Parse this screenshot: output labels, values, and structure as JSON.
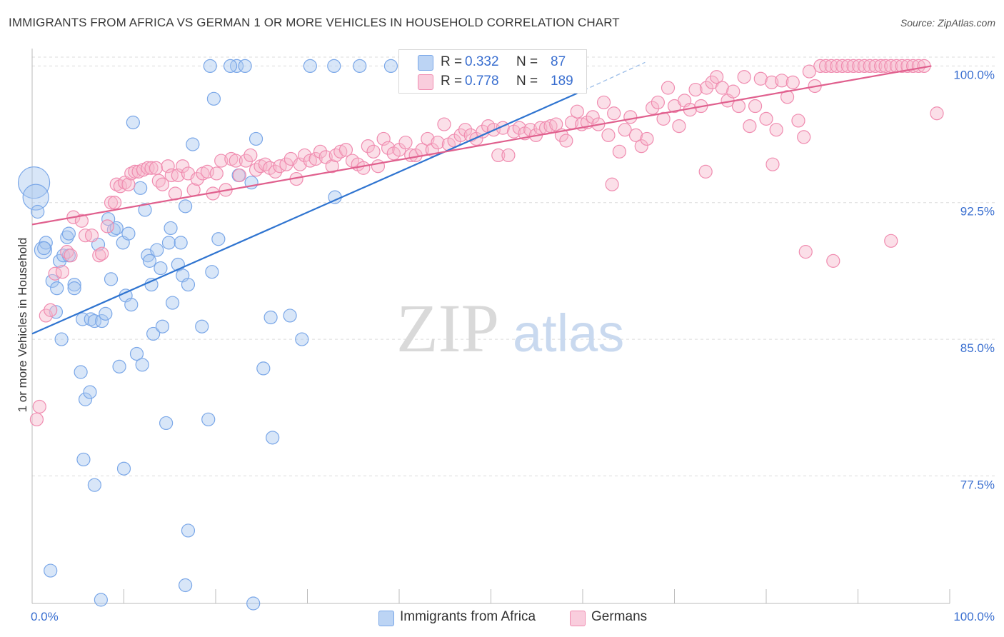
{
  "header": {
    "title": "IMMIGRANTS FROM AFRICA VS GERMAN 1 OR MORE VEHICLES IN HOUSEHOLD CORRELATION CHART",
    "source": "Source: ZipAtlas.com"
  },
  "watermark": {
    "zip": "ZIP",
    "atlas": "atlas"
  },
  "legend": {
    "rows": [
      {
        "r_label": "R =",
        "r_value": "0.332",
        "n_label": "N =",
        "n_value": "87",
        "color": "#a9c7f0"
      },
      {
        "r_label": "R =",
        "r_value": "0.778",
        "n_label": "N =",
        "n_value": "189",
        "color": "#f6b8cd"
      }
    ]
  },
  "bottom_legend": [
    {
      "label": "Immigrants from Africa",
      "color": "#a9c7f0"
    },
    {
      "label": "Germans",
      "color": "#f6b8cd"
    }
  ],
  "chart_data": {
    "type": "scatter",
    "title": "IMMIGRANTS FROM AFRICA VS GERMAN 1 OR MORE VEHICLES IN HOUSEHOLD CORRELATION CHART",
    "xlabel": "",
    "ylabel": "1 or more Vehicles in Household",
    "xlim": [
      0,
      100
    ],
    "ylim": [
      70.5,
      100.8
    ],
    "x_tick_labels": [
      "0.0%",
      "100.0%"
    ],
    "y_ticks": [
      77.5,
      85.0,
      92.5,
      100.0
    ],
    "y_tick_labels": [
      "77.5%",
      "85.0%",
      "92.5%",
      "100.0%"
    ],
    "grid": true,
    "series": [
      {
        "name": "Immigrants from Africa",
        "color": "#7aa7e8",
        "line_color": "#2f74d0",
        "trend": {
          "x0": 0,
          "y0": 85.3,
          "x1": 59.4,
          "y1": 98.5,
          "dash_to_x": 66.8,
          "dash_to_y": 100.2
        },
        "points": [
          [
            0.2,
            93.6
          ],
          [
            0.4,
            92.8
          ],
          [
            0.6,
            92.0
          ],
          [
            1.2,
            89.9
          ],
          [
            1.5,
            90.3
          ],
          [
            1.3,
            90.0
          ],
          [
            2.2,
            88.2
          ],
          [
            2.6,
            86.5
          ],
          [
            2.7,
            87.8
          ],
          [
            3.0,
            89.3
          ],
          [
            3.2,
            85.0
          ],
          [
            3.4,
            89.6
          ],
          [
            3.8,
            90.6
          ],
          [
            4.0,
            90.8
          ],
          [
            4.0,
            89.6
          ],
          [
            4.6,
            88.0
          ],
          [
            4.6,
            87.8
          ],
          [
            5.3,
            83.2
          ],
          [
            5.5,
            86.1
          ],
          [
            5.8,
            81.7
          ],
          [
            6.4,
            86.1
          ],
          [
            6.8,
            86.0
          ],
          [
            7.2,
            90.2
          ],
          [
            7.6,
            86.0
          ],
          [
            8.0,
            86.4
          ],
          [
            8.3,
            91.6
          ],
          [
            8.6,
            88.3
          ],
          [
            8.9,
            91.0
          ],
          [
            9.2,
            91.1
          ],
          [
            9.5,
            83.5
          ],
          [
            9.9,
            90.3
          ],
          [
            10.2,
            87.4
          ],
          [
            10.5,
            90.8
          ],
          [
            10.8,
            86.9
          ],
          [
            11.0,
            96.9
          ],
          [
            11.4,
            84.2
          ],
          [
            11.8,
            93.3
          ],
          [
            12.0,
            83.6
          ],
          [
            12.3,
            92.1
          ],
          [
            12.6,
            89.6
          ],
          [
            12.8,
            89.3
          ],
          [
            13.0,
            88.0
          ],
          [
            13.2,
            85.3
          ],
          [
            13.6,
            89.9
          ],
          [
            14.0,
            88.9
          ],
          [
            14.2,
            85.7
          ],
          [
            14.6,
            80.4
          ],
          [
            14.9,
            90.3
          ],
          [
            15.1,
            91.1
          ],
          [
            15.3,
            87.0
          ],
          [
            15.9,
            89.1
          ],
          [
            16.2,
            90.3
          ],
          [
            16.4,
            88.5
          ],
          [
            16.7,
            92.3
          ],
          [
            17.0,
            88.0
          ],
          [
            17.5,
            95.7
          ],
          [
            18.5,
            85.7
          ],
          [
            19.2,
            80.6
          ],
          [
            19.6,
            88.7
          ],
          [
            20.3,
            90.5
          ],
          [
            19.8,
            98.2
          ],
          [
            6.3,
            82.1
          ],
          [
            5.6,
            78.4
          ],
          [
            6.8,
            77.0
          ],
          [
            10.0,
            77.9
          ],
          [
            17.0,
            74.5
          ],
          [
            16.7,
            71.5
          ],
          [
            2.0,
            72.3
          ],
          [
            7.5,
            70.7
          ],
          [
            24.1,
            70.5
          ],
          [
            22.5,
            94.0
          ],
          [
            24.4,
            96.0
          ],
          [
            23.9,
            93.6
          ],
          [
            26.0,
            86.2
          ],
          [
            28.1,
            86.3
          ],
          [
            25.2,
            83.4
          ],
          [
            26.2,
            79.6
          ],
          [
            29.4,
            85.0
          ],
          [
            33.0,
            92.8
          ],
          [
            19.4,
            100.0
          ],
          [
            22.3,
            100.0
          ],
          [
            23.2,
            100.0
          ],
          [
            30.3,
            100.0
          ],
          [
            32.9,
            100.0
          ],
          [
            35.7,
            100.0
          ],
          [
            39.1,
            100.0
          ],
          [
            21.6,
            100.0
          ]
        ]
      },
      {
        "name": "Germans",
        "color": "#f08cb0",
        "line_color": "#e0608e",
        "trend": {
          "x0": 0,
          "y0": 91.3,
          "x1": 98.0,
          "y1": 100.0
        },
        "points": [
          [
            0.5,
            80.6
          ],
          [
            0.8,
            81.3
          ],
          [
            1.5,
            86.3
          ],
          [
            2.0,
            86.6
          ],
          [
            2.5,
            88.6
          ],
          [
            3.3,
            88.7
          ],
          [
            3.8,
            89.8
          ],
          [
            4.2,
            89.6
          ],
          [
            4.5,
            91.7
          ],
          [
            5.4,
            91.5
          ],
          [
            5.8,
            90.7
          ],
          [
            6.5,
            90.7
          ],
          [
            7.3,
            89.6
          ],
          [
            7.6,
            89.7
          ],
          [
            8.2,
            91.2
          ],
          [
            8.6,
            92.5
          ],
          [
            9.0,
            92.5
          ],
          [
            9.2,
            93.5
          ],
          [
            9.6,
            93.4
          ],
          [
            10.1,
            93.6
          ],
          [
            10.5,
            93.5
          ],
          [
            10.8,
            94.1
          ],
          [
            11.2,
            94.2
          ],
          [
            11.6,
            94.2
          ],
          [
            12.1,
            94.3
          ],
          [
            12.6,
            94.4
          ],
          [
            13.0,
            94.4
          ],
          [
            13.5,
            94.4
          ],
          [
            13.8,
            93.7
          ],
          [
            14.2,
            93.5
          ],
          [
            14.8,
            94.5
          ],
          [
            15.2,
            94.0
          ],
          [
            15.6,
            93.0
          ],
          [
            15.9,
            94.0
          ],
          [
            16.4,
            94.5
          ],
          [
            17.0,
            94.1
          ],
          [
            17.6,
            93.2
          ],
          [
            18.0,
            93.8
          ],
          [
            18.6,
            94.1
          ],
          [
            19.1,
            94.2
          ],
          [
            19.7,
            93.0
          ],
          [
            20.1,
            94.1
          ],
          [
            20.6,
            94.8
          ],
          [
            21.1,
            93.2
          ],
          [
            21.7,
            94.9
          ],
          [
            22.2,
            94.8
          ],
          [
            22.6,
            94.0
          ],
          [
            23.3,
            94.8
          ],
          [
            23.8,
            95.1
          ],
          [
            24.4,
            94.3
          ],
          [
            24.9,
            94.5
          ],
          [
            25.4,
            94.6
          ],
          [
            25.9,
            94.4
          ],
          [
            26.5,
            94.2
          ],
          [
            27.0,
            94.5
          ],
          [
            27.7,
            94.6
          ],
          [
            28.2,
            94.9
          ],
          [
            28.8,
            93.8
          ],
          [
            29.2,
            94.6
          ],
          [
            29.7,
            95.1
          ],
          [
            30.3,
            94.8
          ],
          [
            30.9,
            94.9
          ],
          [
            31.4,
            95.3
          ],
          [
            32.0,
            95.0
          ],
          [
            32.7,
            94.5
          ],
          [
            33.1,
            95.1
          ],
          [
            33.6,
            95.3
          ],
          [
            34.2,
            95.4
          ],
          [
            34.9,
            94.8
          ],
          [
            35.5,
            94.6
          ],
          [
            36.1,
            94.4
          ],
          [
            36.6,
            95.6
          ],
          [
            37.2,
            95.3
          ],
          [
            37.7,
            94.5
          ],
          [
            38.3,
            96.0
          ],
          [
            38.8,
            95.5
          ],
          [
            39.4,
            95.2
          ],
          [
            40.0,
            95.4
          ],
          [
            40.7,
            95.8
          ],
          [
            41.3,
            95.1
          ],
          [
            41.8,
            95.1
          ],
          [
            42.5,
            95.4
          ],
          [
            43.1,
            96.0
          ],
          [
            43.6,
            95.4
          ],
          [
            44.2,
            95.8
          ],
          [
            44.9,
            96.8
          ],
          [
            45.4,
            95.7
          ],
          [
            46.0,
            95.9
          ],
          [
            46.7,
            96.2
          ],
          [
            47.2,
            96.5
          ],
          [
            47.8,
            96.2
          ],
          [
            48.4,
            96.0
          ],
          [
            49.1,
            96.4
          ],
          [
            49.7,
            96.7
          ],
          [
            50.3,
            96.5
          ],
          [
            50.8,
            95.1
          ],
          [
            51.3,
            96.6
          ],
          [
            51.9,
            95.1
          ],
          [
            52.5,
            96.4
          ],
          [
            53.1,
            96.6
          ],
          [
            53.7,
            96.3
          ],
          [
            54.3,
            96.5
          ],
          [
            54.9,
            96.2
          ],
          [
            55.4,
            96.6
          ],
          [
            56.0,
            96.6
          ],
          [
            56.5,
            96.7
          ],
          [
            57.1,
            96.8
          ],
          [
            57.7,
            96.2
          ],
          [
            58.2,
            95.9
          ],
          [
            58.8,
            96.9
          ],
          [
            59.4,
            97.5
          ],
          [
            59.9,
            96.8
          ],
          [
            60.5,
            96.9
          ],
          [
            61.1,
            97.2
          ],
          [
            61.7,
            96.8
          ],
          [
            62.3,
            98.0
          ],
          [
            62.8,
            96.2
          ],
          [
            63.4,
            97.4
          ],
          [
            64.0,
            95.3
          ],
          [
            64.6,
            96.5
          ],
          [
            65.2,
            97.2
          ],
          [
            65.8,
            96.2
          ],
          [
            66.4,
            95.6
          ],
          [
            67.0,
            96.0
          ],
          [
            67.6,
            97.7
          ],
          [
            68.2,
            98.0
          ],
          [
            68.8,
            97.1
          ],
          [
            69.3,
            98.8
          ],
          [
            70.0,
            97.8
          ],
          [
            70.5,
            96.7
          ],
          [
            71.1,
            98.1
          ],
          [
            71.7,
            97.6
          ],
          [
            72.3,
            98.7
          ],
          [
            72.9,
            97.8
          ],
          [
            73.5,
            98.8
          ],
          [
            74.1,
            99.1
          ],
          [
            74.6,
            99.4
          ],
          [
            75.2,
            98.8
          ],
          [
            75.8,
            98.1
          ],
          [
            76.4,
            98.6
          ],
          [
            77.0,
            97.8
          ],
          [
            77.6,
            99.4
          ],
          [
            78.2,
            96.7
          ],
          [
            78.8,
            97.8
          ],
          [
            79.4,
            99.3
          ],
          [
            80.0,
            97.1
          ],
          [
            80.6,
            99.1
          ],
          [
            81.1,
            96.5
          ],
          [
            81.7,
            99.2
          ],
          [
            82.3,
            98.3
          ],
          [
            82.9,
            99.1
          ],
          [
            83.5,
            97.0
          ],
          [
            84.1,
            96.1
          ],
          [
            84.7,
            99.7
          ],
          [
            85.3,
            98.9
          ],
          [
            85.9,
            100.0
          ],
          [
            86.5,
            100.0
          ],
          [
            87.1,
            100.0
          ],
          [
            87.7,
            100.0
          ],
          [
            88.3,
            100.0
          ],
          [
            88.9,
            100.0
          ],
          [
            89.5,
            100.0
          ],
          [
            90.1,
            100.0
          ],
          [
            90.7,
            100.0
          ],
          [
            91.3,
            100.0
          ],
          [
            91.9,
            100.0
          ],
          [
            92.5,
            100.0
          ],
          [
            93.0,
            100.0
          ],
          [
            93.6,
            100.0
          ],
          [
            94.2,
            100.0
          ],
          [
            94.8,
            100.0
          ],
          [
            95.4,
            100.0
          ],
          [
            96.0,
            100.0
          ],
          [
            96.6,
            100.0
          ],
          [
            97.2,
            100.0
          ],
          [
            98.6,
            97.4
          ],
          [
            80.7,
            94.6
          ],
          [
            87.3,
            89.3
          ],
          [
            93.6,
            90.4
          ],
          [
            84.3,
            89.8
          ],
          [
            73.4,
            94.2
          ],
          [
            63.2,
            93.5
          ]
        ]
      }
    ]
  }
}
